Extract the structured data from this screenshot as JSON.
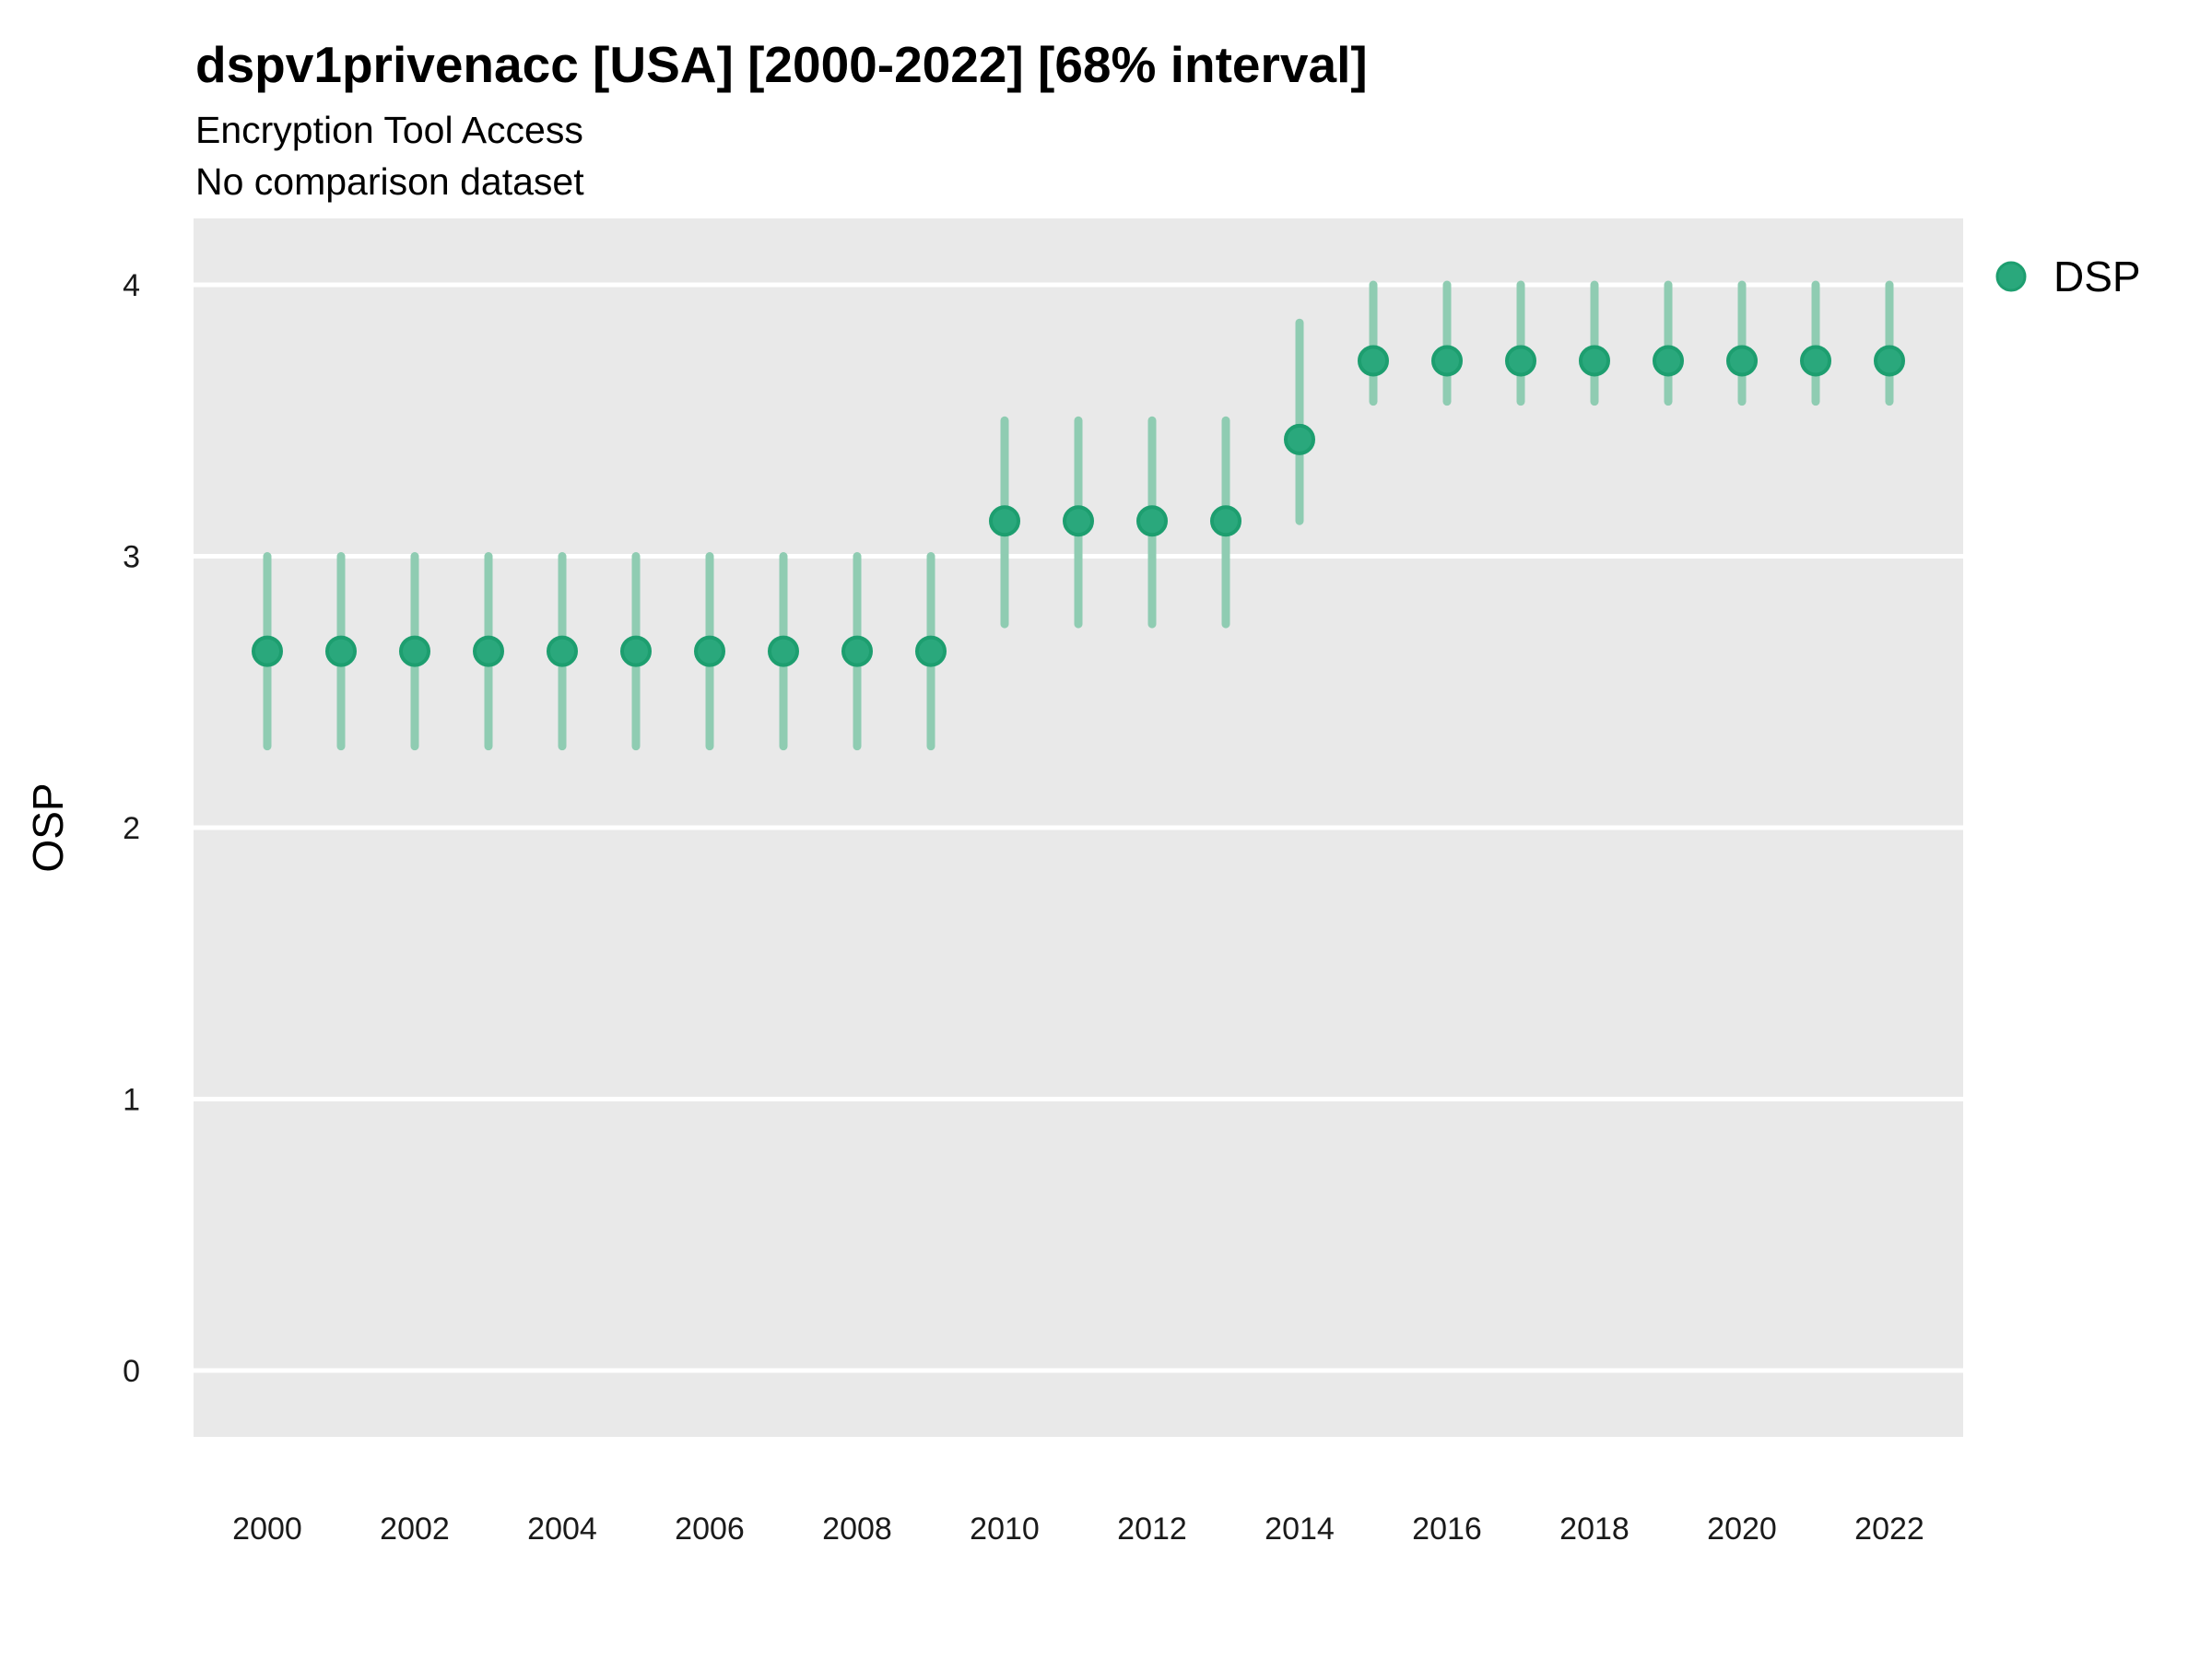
{
  "header": {
    "title": "dspv1privenacc [USA] [2000-2022] [68% interval]",
    "subtitle": "Encryption Tool Access",
    "comparison_note": "No comparison dataset"
  },
  "chart_data": {
    "type": "scatter",
    "variant": "pointrange",
    "title": "dspv1privenacc [USA] [2000-2022] [68% interval]",
    "subtitle": "Encryption Tool Access",
    "annotation": "No comparison dataset",
    "xlabel": "",
    "ylabel": "OSP",
    "interval": "68%",
    "grid": "major-horizontal-only",
    "legend_position": "right",
    "legend": [
      {
        "label": "DSP",
        "color": "#2aa87c"
      }
    ],
    "x_ticks": [
      2000,
      2002,
      2004,
      2006,
      2008,
      2010,
      2012,
      2014,
      2016,
      2018,
      2020,
      2022
    ],
    "y_ticks": [
      0,
      1,
      2,
      3,
      4
    ],
    "ylim": [
      -0.24,
      4.25
    ],
    "xlim": [
      1999,
      2023
    ],
    "series": [
      {
        "name": "DSP",
        "x": [
          2000,
          2001,
          2002,
          2003,
          2004,
          2005,
          2006,
          2007,
          2008,
          2009,
          2010,
          2011,
          2012,
          2013,
          2014,
          2015,
          2016,
          2017,
          2018,
          2019,
          2020,
          2021,
          2022
        ],
        "y": [
          2.65,
          2.65,
          2.65,
          2.65,
          2.65,
          2.65,
          2.65,
          2.65,
          2.65,
          2.65,
          3.13,
          3.13,
          3.13,
          3.13,
          3.43,
          3.72,
          3.72,
          3.72,
          3.72,
          3.72,
          3.72,
          3.72,
          3.72
        ],
        "y_lo": [
          2.3,
          2.3,
          2.3,
          2.3,
          2.3,
          2.3,
          2.3,
          2.3,
          2.3,
          2.3,
          2.75,
          2.75,
          2.75,
          2.75,
          3.13,
          3.57,
          3.57,
          3.57,
          3.57,
          3.57,
          3.57,
          3.57,
          3.57
        ],
        "y_hi": [
          3.0,
          3.0,
          3.0,
          3.0,
          3.0,
          3.0,
          3.0,
          3.0,
          3.0,
          3.0,
          3.5,
          3.5,
          3.5,
          3.5,
          3.86,
          4.0,
          4.0,
          4.0,
          4.0,
          4.0,
          4.0,
          4.0,
          4.0
        ]
      }
    ],
    "colors": {
      "point_fill": "#2aa87c",
      "point_stroke": "#1d9e6f",
      "interval_bar": "#8fccb2",
      "panel_bg": "#e9e9e9",
      "gridline": "#ffffff",
      "tick_text": "#1a1a1a",
      "axis_title_text": "#000000"
    }
  }
}
